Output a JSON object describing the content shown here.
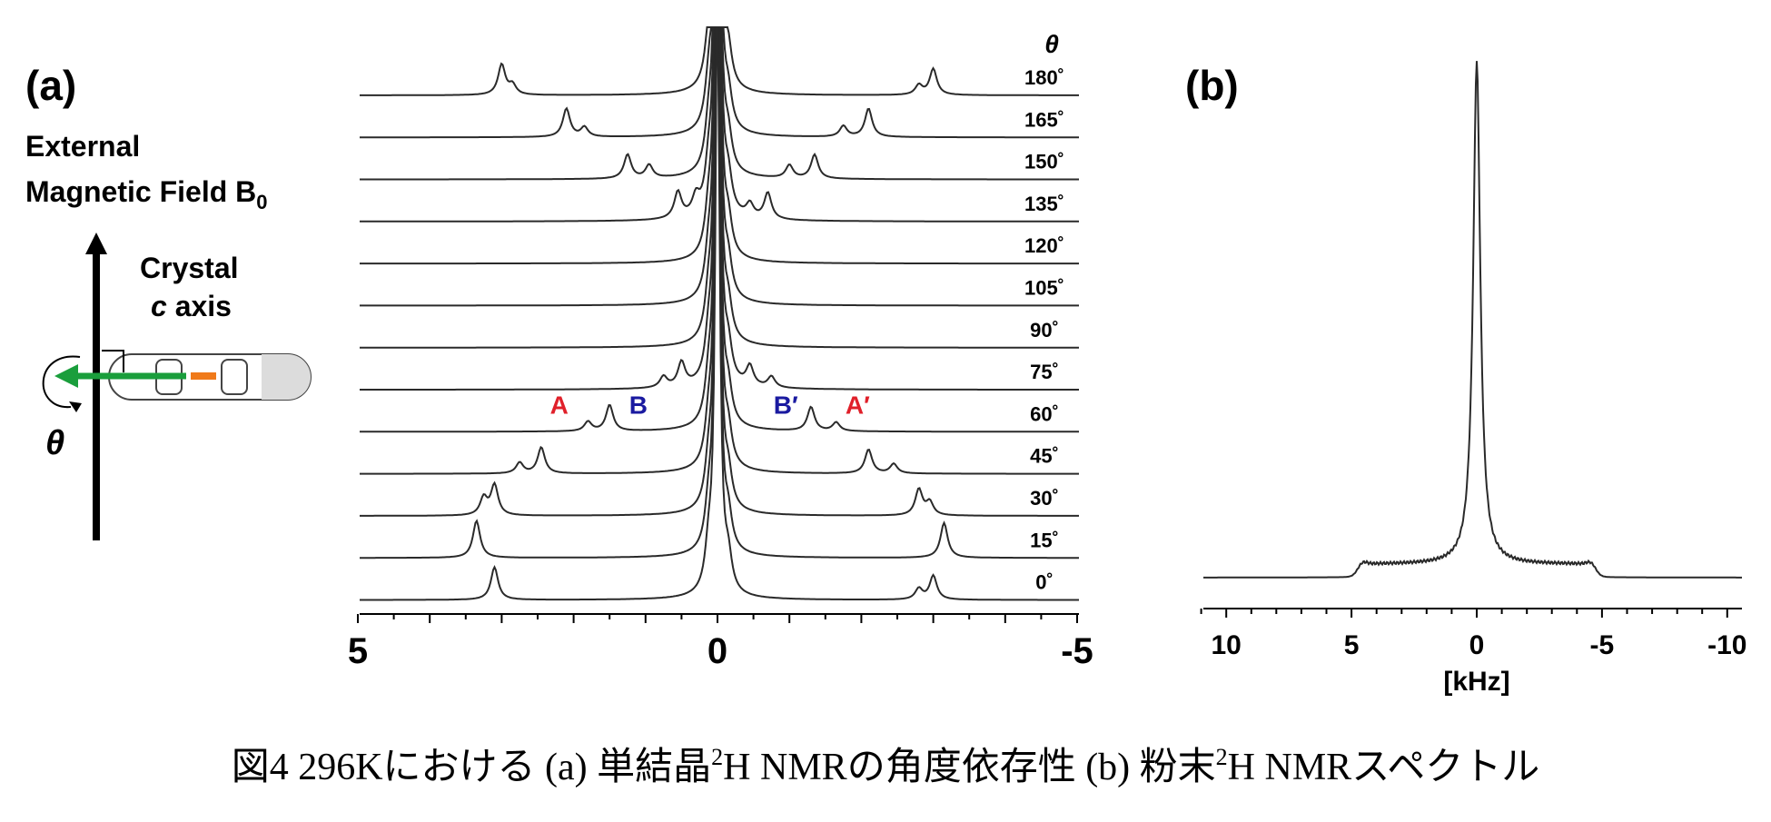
{
  "panel_a": {
    "label": "(a)",
    "field_label_line1": "External",
    "field_label_line2": "Magnetic Field B",
    "field_label_sub": "0",
    "crystal_label_line1": "Crystal",
    "crystal_label_line2_italic": "c",
    "crystal_label_line2_rest": " axis",
    "theta_symbol": "θ"
  },
  "panel_b": {
    "label": "(b)"
  },
  "caption": {
    "prefix": "図4 296Kにおける (a) 単結晶",
    "sup1": "2",
    "mid": "H NMRの角度依存性 (b) 粉末",
    "sup2": "2",
    "suffix": "H NMRスペクトル"
  },
  "colors": {
    "trace": "#2a2a2a",
    "peak_A": "#e0202a",
    "peak_B": "#1a1aa0",
    "rotation_arrow": "#1a9e3c",
    "orange_marker": "#f07a1a",
    "capsule_fill": "#dcdcdc"
  },
  "chart_data": [
    {
      "type": "line",
      "id": "angle_series",
      "x_ticks": [
        "5",
        "0",
        "-5"
      ],
      "x_tick_values": [
        5,
        0,
        -5
      ],
      "xlim": [
        5,
        -5
      ],
      "angle_header": "θ",
      "series": [
        {
          "name": "180˚",
          "angle": 180,
          "peaks": [
            [
              3.0,
              0.7
            ],
            [
              2.85,
              0.22
            ],
            [
              -3.0,
              0.6
            ],
            [
              -2.8,
              0.22
            ]
          ]
        },
        {
          "name": "165˚",
          "angle": 165,
          "peaks": [
            [
              2.1,
              0.65
            ],
            [
              1.85,
              0.22
            ],
            [
              -2.1,
              0.65
            ],
            [
              -1.75,
              0.25
            ]
          ]
        },
        {
          "name": "150˚",
          "angle": 150,
          "peaks": [
            [
              1.25,
              0.55
            ],
            [
              0.95,
              0.3
            ],
            [
              -1.35,
              0.55
            ],
            [
              -1.0,
              0.3
            ]
          ]
        },
        {
          "name": "135˚",
          "angle": 135,
          "peaks": [
            [
              0.55,
              0.6
            ],
            [
              0.3,
              0.4
            ],
            [
              -0.7,
              0.6
            ],
            [
              -0.45,
              0.3
            ]
          ]
        },
        {
          "name": "120˚",
          "angle": 120,
          "peaks": []
        },
        {
          "name": "105˚",
          "angle": 105,
          "peaks": []
        },
        {
          "name": "90˚",
          "angle": 90,
          "peaks": []
        },
        {
          "name": "75˚",
          "angle": 75,
          "peaks": [
            [
              0.5,
              0.55
            ],
            [
              0.75,
              0.25
            ],
            [
              -0.45,
              0.45
            ],
            [
              -0.75,
              0.25
            ]
          ]
        },
        {
          "name": "60˚",
          "angle": 60,
          "peaks": [
            [
              1.8,
              0.22
            ],
            [
              1.5,
              0.6
            ],
            [
              -1.3,
              0.55
            ],
            [
              -1.65,
              0.2
            ]
          ],
          "annotations": [
            {
              "text": "A",
              "x": 2.2,
              "color": "#e0202a"
            },
            {
              "text": "B",
              "x": 1.1,
              "color": "#1a1aa0"
            },
            {
              "text": "B′",
              "x": -0.95,
              "color": "#1a1aa0"
            },
            {
              "text": "A′",
              "x": -1.95,
              "color": "#e0202a"
            }
          ]
        },
        {
          "name": "45˚",
          "angle": 45,
          "peaks": [
            [
              2.75,
              0.25
            ],
            [
              2.45,
              0.6
            ],
            [
              -2.1,
              0.55
            ],
            [
              -2.45,
              0.22
            ]
          ]
        },
        {
          "name": "30˚",
          "angle": 30,
          "peaks": [
            [
              3.25,
              0.4
            ],
            [
              3.1,
              0.7
            ],
            [
              -2.8,
              0.6
            ],
            [
              -2.95,
              0.3
            ]
          ]
        },
        {
          "name": "15˚",
          "angle": 15,
          "peaks": [
            [
              3.35,
              0.85
            ],
            [
              -3.15,
              0.8
            ]
          ]
        },
        {
          "name": "0˚",
          "angle": 0,
          "peaks": [
            [
              3.1,
              0.75
            ],
            [
              -2.8,
              0.25
            ],
            [
              -3.0,
              0.55
            ]
          ]
        }
      ]
    },
    {
      "type": "line",
      "id": "powder",
      "xlabel": "[kHz]",
      "x_ticks": [
        "10",
        "5",
        "0",
        "-5",
        "-10"
      ],
      "x_tick_values": [
        10,
        5,
        0,
        -5,
        -10
      ],
      "xlim": [
        11,
        -10.5
      ],
      "series": [
        {
          "central_peak_x": 0,
          "shoulder_x": [
            4.7,
            -4.7
          ]
        }
      ]
    }
  ]
}
